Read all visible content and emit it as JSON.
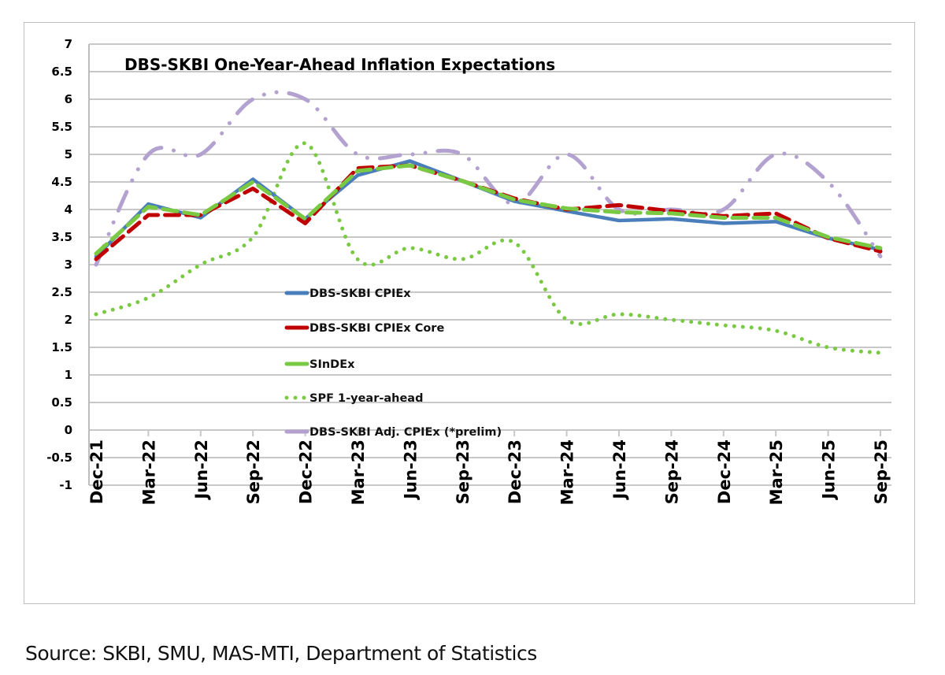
{
  "chart_data": {
    "type": "line",
    "title": "DBS-SKBI One-Year-Ahead Inflation Expectations",
    "xlabel": "",
    "ylabel": "",
    "ylim": [
      -1,
      7
    ],
    "yticks": [
      -1,
      -0.5,
      0,
      0.5,
      1,
      1.5,
      2,
      2.5,
      3,
      3.5,
      4,
      4.5,
      5,
      5.5,
      6,
      6.5,
      7
    ],
    "ytick_labels": [
      "-1",
      "-0.5",
      "0",
      "0.5",
      "1",
      "1.5",
      "2",
      "2.5",
      "3",
      "3.5",
      "4",
      "4.5",
      "5",
      "5.5",
      "6",
      "6.5",
      "7"
    ],
    "grid": true,
    "legend_position": "center-left",
    "categories": [
      "Dec-21",
      "Mar-22",
      "Jun-22",
      "Sep-22",
      "Dec-22",
      "Mar-23",
      "Jun-23",
      "Sep-23",
      "Dec-23",
      "Mar-24",
      "Jun-24",
      "Sep-24",
      "Dec-24",
      "Mar-25",
      "Jun-25",
      "Sep-25"
    ],
    "series": [
      {
        "name": "DBS-SKBI CPIEx",
        "style": "solid",
        "color": "#4a7ebb",
        "values": [
          3.15,
          4.1,
          3.85,
          4.55,
          3.83,
          4.62,
          4.88,
          4.52,
          4.15,
          3.97,
          3.8,
          3.83,
          3.75,
          3.78,
          3.48,
          3.27
        ]
      },
      {
        "name": "DBS-SKBI CPIEx Core",
        "style": "dashed",
        "color": "#c00000",
        "values": [
          3.1,
          3.9,
          3.9,
          4.38,
          3.75,
          4.75,
          4.8,
          4.52,
          4.2,
          4.0,
          4.08,
          3.97,
          3.88,
          3.93,
          3.48,
          3.24
        ]
      },
      {
        "name": "SInDEx",
        "style": "dashed",
        "color": "#7ac943",
        "values": [
          3.2,
          4.05,
          3.9,
          4.5,
          3.83,
          4.7,
          4.8,
          4.52,
          4.18,
          4.02,
          3.95,
          3.93,
          3.85,
          3.85,
          3.5,
          3.3
        ]
      },
      {
        "name": "SPF 1-year-ahead",
        "style": "dotted-smooth",
        "color": "#7ac943",
        "values": [
          2.1,
          2.4,
          3.0,
          3.5,
          5.2,
          3.1,
          3.3,
          3.1,
          3.4,
          2.0,
          2.1,
          2.0,
          1.9,
          1.8,
          1.5,
          1.4
        ]
      },
      {
        "name": "DBS-SKBI Adj. CPIEx (*prelim)",
        "style": "dash-dot",
        "color": "#b3a2d0",
        "values": [
          3.0,
          5.0,
          5.0,
          6.0,
          6.0,
          5.0,
          5.0,
          5.0,
          4.1,
          5.0,
          4.0,
          4.0,
          4.0,
          5.0,
          4.5,
          3.15
        ]
      }
    ],
    "legend": [
      "DBS-SKBI CPIEx",
      "DBS-SKBI CPIEx Core",
      "SInDEx",
      "SPF 1-year-ahead",
      "DBS-SKBI Adj. CPIEx (*prelim)"
    ]
  },
  "footer": {
    "source": "Source: SKBI, SMU, MAS-MTI, Department of Statistics"
  }
}
